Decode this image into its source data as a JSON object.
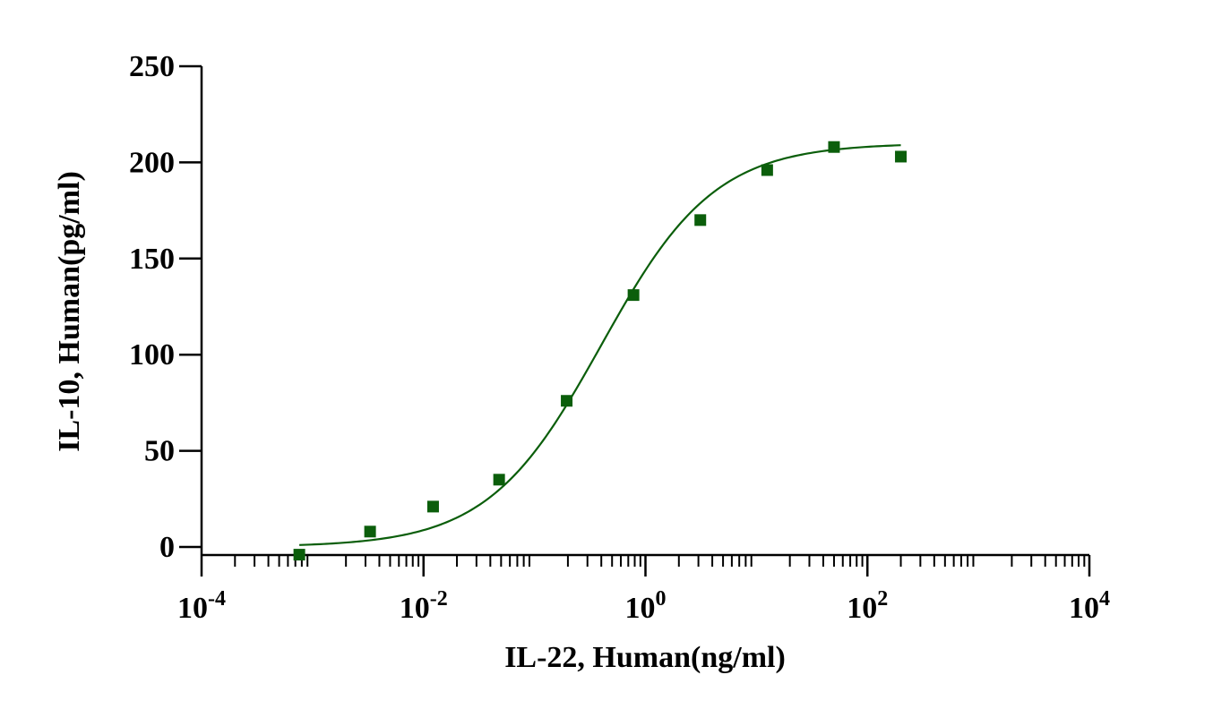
{
  "chart_data": {
    "type": "scatter",
    "xscale": "log",
    "xlabel": "IL-22, Human(ng/ml)",
    "ylabel": "IL-10, Human(pg/ml)",
    "xlim": [
      0.0001,
      10000
    ],
    "ylim": [
      -5,
      250
    ],
    "xticks": [
      {
        "value": 0.0001,
        "base": "10",
        "exp": "-4"
      },
      {
        "value": 0.01,
        "base": "10",
        "exp": "-2"
      },
      {
        "value": 1,
        "base": "10",
        "exp": "0"
      },
      {
        "value": 100,
        "base": "10",
        "exp": "2"
      },
      {
        "value": 10000,
        "base": "10",
        "exp": "4"
      }
    ],
    "yticks": [
      0,
      50,
      100,
      150,
      200,
      250
    ],
    "color": "#0b5e0b",
    "series": [
      {
        "marker": "square",
        "x": [
          0.00076,
          0.0033,
          0.0122,
          0.048,
          0.195,
          0.78,
          3.12,
          12.5,
          50,
          200
        ],
        "y": [
          -4,
          8,
          21,
          35,
          76,
          131,
          170,
          196,
          208,
          203
        ]
      }
    ],
    "fit": {
      "model": "4PL",
      "bottom": 0,
      "top": 210,
      "ec50": 0.4,
      "hill": 0.85,
      "x_range": [
        0.00076,
        200
      ]
    }
  }
}
